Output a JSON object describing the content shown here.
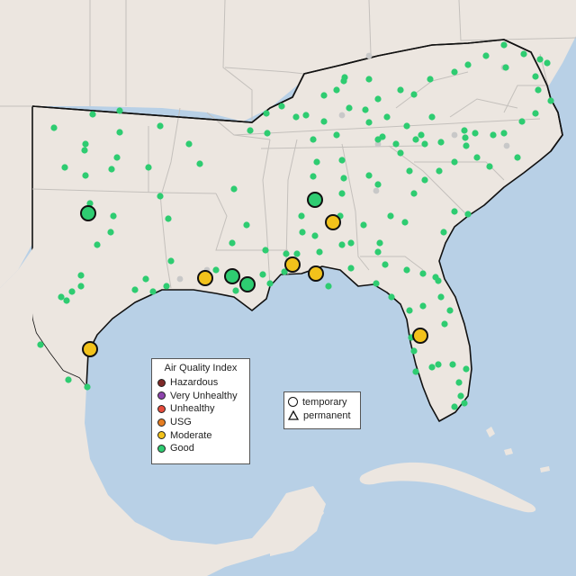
{
  "colors": {
    "water": "#b8d0e6",
    "land": "#ece6e0",
    "land_dim": "#e4ddd7",
    "border": "#c4c0bc",
    "outline": "#111111",
    "good": "#2ecc71",
    "moderate": "#f2c21b",
    "nodata": "#c8c8c8"
  },
  "legend": {
    "title": "Air Quality Index",
    "items": [
      {
        "label": "Hazardous",
        "color": "#7e2a28"
      },
      {
        "label": "Very Unhealthy",
        "color": "#8e44ad"
      },
      {
        "label": "Unhealthy",
        "color": "#e74c3c"
      },
      {
        "label": "USG",
        "color": "#e67e22"
      },
      {
        "label": "Moderate",
        "color": "#f2c21b"
      },
      {
        "label": "Good",
        "color": "#2ecc71"
      }
    ]
  },
  "monitor_types": {
    "items": [
      {
        "label": "temporary",
        "shape": "circle-icon"
      },
      {
        "label": "permanent",
        "shape": "triangle-icon"
      }
    ]
  }
}
